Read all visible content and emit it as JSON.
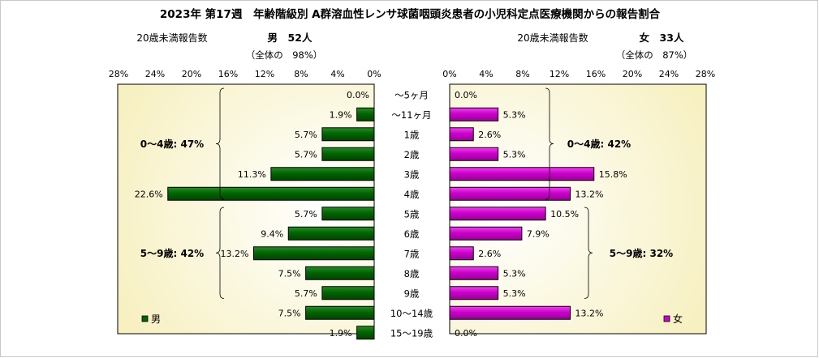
{
  "chart_data": {
    "type": "bar",
    "title": "2023年 第17週　年齢階級別 A群溶血性レンサ球菌咽頭炎患者の小児科定点医療機関からの報告割合",
    "categories": [
      "～5ヶ月",
      "～11ヶ月",
      "1歳",
      "2歳",
      "3歳",
      "4歳",
      "5歳",
      "6歳",
      "7歳",
      "8歳",
      "9歳",
      "10～14歳",
      "15～19歳"
    ],
    "xlim": [
      0,
      28
    ],
    "ticks": [
      "0%",
      "4%",
      "8%",
      "12%",
      "16%",
      "20%",
      "24%",
      "28%"
    ],
    "grid": false,
    "series": [
      {
        "name": "男",
        "side": "left",
        "color": "#006600",
        "values": [
          0.0,
          1.9,
          5.7,
          5.7,
          11.3,
          22.6,
          5.7,
          9.4,
          13.2,
          7.5,
          5.7,
          7.5,
          1.9
        ],
        "labels": [
          "0.0%",
          "1.9%",
          "5.7%",
          "5.7%",
          "11.3%",
          "22.6%",
          "5.7%",
          "9.4%",
          "13.2%",
          "7.5%",
          "5.7%",
          "7.5%",
          "1.9%"
        ],
        "header_caption": "20歳未満報告数",
        "header_count": "男　52人",
        "header_share": "（全体の　98%）",
        "groups": [
          {
            "label": "0～4歳: 47%",
            "from": 0,
            "to": 5
          },
          {
            "label": "5～9歳: 42%",
            "from": 6,
            "to": 10
          }
        ],
        "legend_label": "男"
      },
      {
        "name": "女",
        "side": "right",
        "color": "#cc00cc",
        "values": [
          0.0,
          5.3,
          2.6,
          5.3,
          15.8,
          13.2,
          10.5,
          7.9,
          2.6,
          5.3,
          5.3,
          13.2,
          0.0
        ],
        "labels": [
          "0.0%",
          "5.3%",
          "2.6%",
          "5.3%",
          "15.8%",
          "13.2%",
          "10.5%",
          "7.9%",
          "2.6%",
          "5.3%",
          "5.3%",
          "13.2%",
          "0.0%"
        ],
        "header_caption": "20歳未満報告数",
        "header_count": "女　33人",
        "header_share": "（全体の　87%）",
        "groups": [
          {
            "label": "0～4歳: 42%",
            "from": 0,
            "to": 5
          },
          {
            "label": "5～9歳: 32%",
            "from": 6,
            "to": 10
          }
        ],
        "legend_label": "女"
      }
    ]
  }
}
